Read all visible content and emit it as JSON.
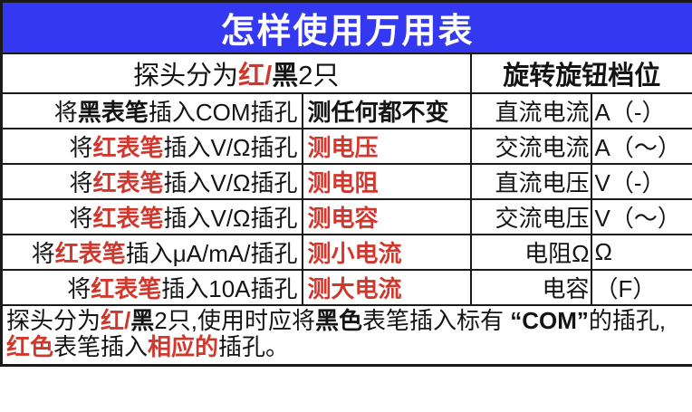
{
  "title": {
    "text": "怎样使用万用表"
  },
  "colors": {
    "title_bg": "#3438f0",
    "title_text": "#ffffff",
    "red": "#d0382e",
    "black": "#141414",
    "border": "#1a1a1a"
  },
  "header": {
    "left_runs": [
      {
        "text": "探头分为",
        "style": "normal"
      },
      {
        "text": "红/",
        "style": "red"
      },
      {
        "text": "黑",
        "style": "bold"
      },
      {
        "text": "2只",
        "style": "normal"
      }
    ],
    "right": "旋转旋钮档位"
  },
  "rows": [
    {
      "instruction_runs": [
        {
          "text": "将",
          "style": "normal"
        },
        {
          "text": "黑表笔",
          "style": "bold"
        },
        {
          "text": "插入COM插孔",
          "style": "normal"
        }
      ],
      "result_runs": [
        {
          "text": "测任何都不变",
          "style": "bold"
        }
      ],
      "dial_label": "直流电流",
      "dial_symbol": "A（-）"
    },
    {
      "instruction_runs": [
        {
          "text": "将",
          "style": "normal"
        },
        {
          "text": "红表笔",
          "style": "red"
        },
        {
          "text": "插入V/Ω插孔",
          "style": "normal"
        }
      ],
      "result_runs": [
        {
          "text": "测电压",
          "style": "red"
        }
      ],
      "dial_label": "交流电流",
      "dial_symbol": "A（～）"
    },
    {
      "instruction_runs": [
        {
          "text": "将",
          "style": "normal"
        },
        {
          "text": "红表笔",
          "style": "red"
        },
        {
          "text": "插入V/Ω插孔",
          "style": "normal"
        }
      ],
      "result_runs": [
        {
          "text": "测电阻",
          "style": "red"
        }
      ],
      "dial_label": "直流电压",
      "dial_symbol": "V（-）"
    },
    {
      "instruction_runs": [
        {
          "text": "将",
          "style": "normal"
        },
        {
          "text": "红表笔",
          "style": "red"
        },
        {
          "text": "插入V/Ω插孔",
          "style": "normal"
        }
      ],
      "result_runs": [
        {
          "text": "测电容",
          "style": "red"
        }
      ],
      "dial_label": "交流电压",
      "dial_symbol": "V（～）"
    },
    {
      "instruction_runs": [
        {
          "text": "将",
          "style": "normal"
        },
        {
          "text": "红表笔",
          "style": "red"
        },
        {
          "text": "插入μA/mA/插孔",
          "style": "normal"
        }
      ],
      "result_runs": [
        {
          "text": "测小电流",
          "style": "red"
        }
      ],
      "dial_label": "电阻Ω",
      "dial_symbol": "Ω"
    },
    {
      "instruction_runs": [
        {
          "text": "将",
          "style": "normal"
        },
        {
          "text": "红表笔",
          "style": "red"
        },
        {
          "text": "插入10A插孔",
          "style": "normal"
        }
      ],
      "result_runs": [
        {
          "text": "测大电流",
          "style": "red"
        }
      ],
      "dial_label": "电容",
      "dial_symbol": "（F）"
    }
  ],
  "note": {
    "line1_runs": [
      {
        "text": "探头分为",
        "style": "normal"
      },
      {
        "text": "红/",
        "style": "red"
      },
      {
        "text": "黑",
        "style": "bold"
      },
      {
        "text": "2只,使用时应将",
        "style": "normal"
      },
      {
        "text": "黑色",
        "style": "bold"
      },
      {
        "text": "表笔插入标有 ",
        "style": "normal"
      },
      {
        "text": "“COM”",
        "style": "bold"
      },
      {
        "text": "的插孔,",
        "style": "normal"
      }
    ],
    "line2_runs": [
      {
        "text": "红色",
        "style": "red"
      },
      {
        "text": "表笔插入",
        "style": "normal"
      },
      {
        "text": "相应的",
        "style": "red"
      },
      {
        "text": "插孔。",
        "style": "normal"
      }
    ]
  }
}
